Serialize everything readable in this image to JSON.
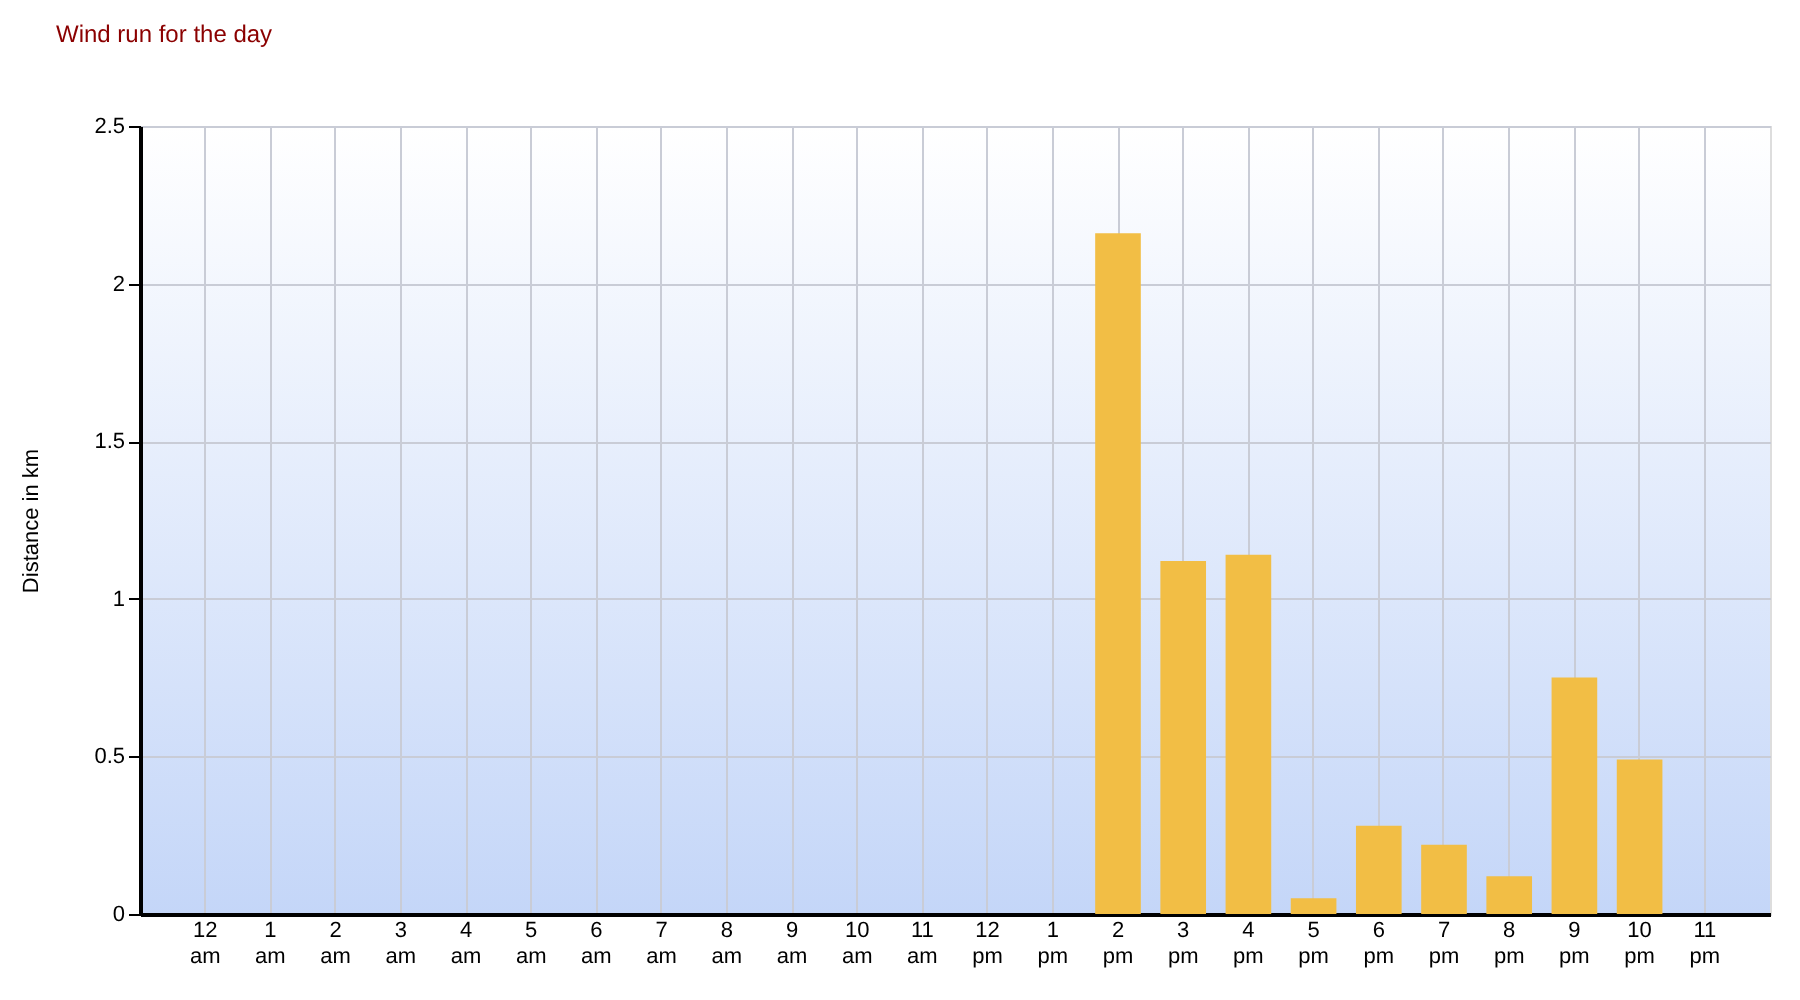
{
  "chart_data": {
    "type": "bar",
    "title": "Wind run for the day",
    "ylabel": "Distance in km",
    "categories": [
      "12 am",
      "1 am",
      "2 am",
      "3 am",
      "4 am",
      "5 am",
      "6 am",
      "7 am",
      "8 am",
      "9 am",
      "10 am",
      "11 am",
      "12 pm",
      "1 pm",
      "2 pm",
      "3 pm",
      "4 pm",
      "5 pm",
      "6 pm",
      "7 pm",
      "8 pm",
      "9 pm",
      "10 pm",
      "11 pm"
    ],
    "values": [
      0,
      0,
      0,
      0,
      0,
      0,
      0,
      0,
      0,
      0,
      0,
      0,
      0,
      0,
      2.16,
      1.12,
      1.14,
      0.05,
      0.28,
      0.22,
      0.12,
      0.75,
      0.49,
      0
    ],
    "color": "#f2be45",
    "ylim": [
      0,
      2.5
    ],
    "yticks": [
      0,
      0.5,
      1,
      1.5,
      2,
      2.5
    ],
    "grid": true
  }
}
